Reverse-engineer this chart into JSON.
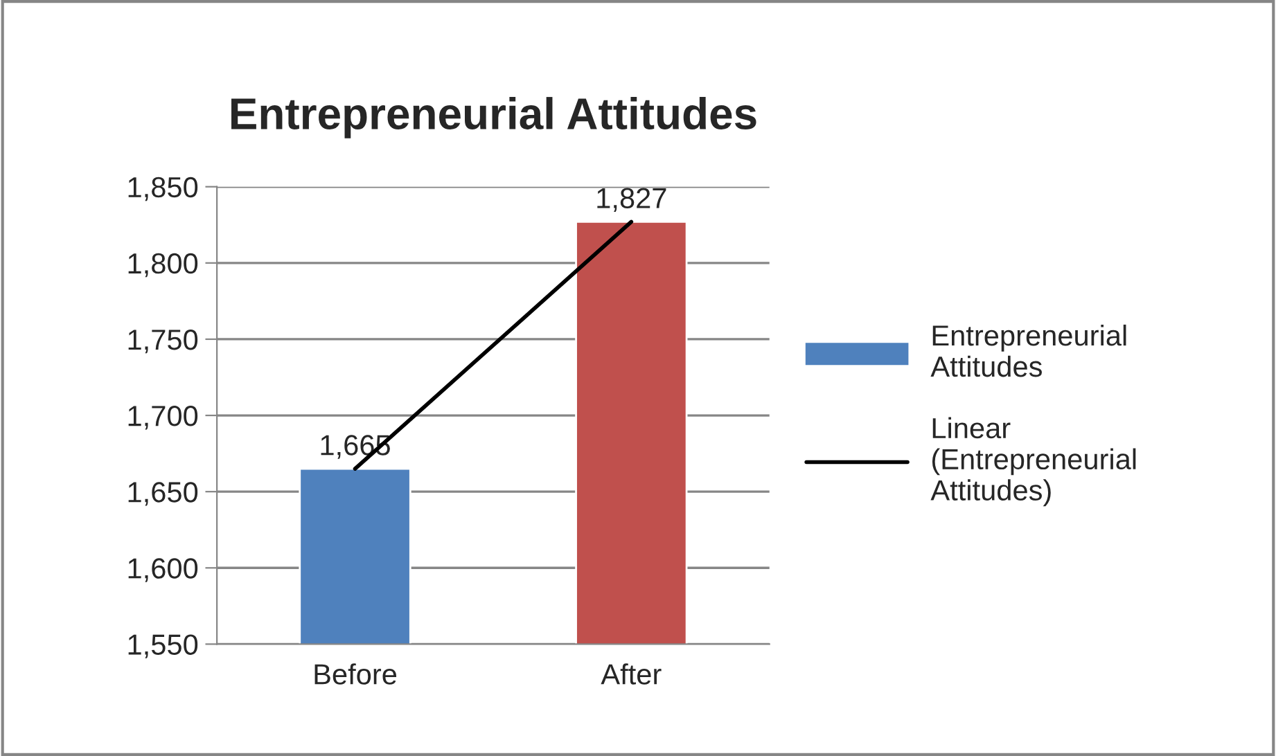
{
  "chart_data": {
    "type": "bar",
    "title": "Entrepreneurial Attitudes",
    "categories": [
      "Before",
      "After"
    ],
    "series": [
      {
        "name": "Entrepreneurial Attitudes",
        "colors": [
          "#4f81bd",
          "#c0504d"
        ],
        "values": [
          1665,
          1827
        ],
        "value_labels": [
          "1,665",
          "1,827"
        ]
      },
      {
        "name": "Linear (Entrepreneurial Attitudes)",
        "type": "line",
        "color": "#000000",
        "values": [
          1665,
          1827
        ]
      }
    ],
    "ylim": [
      1550,
      1850
    ],
    "yticks": [
      {
        "value": 1550,
        "label": "1,550"
      },
      {
        "value": 1600,
        "label": "1,600"
      },
      {
        "value": 1650,
        "label": "1,650"
      },
      {
        "value": 1700,
        "label": "1,700"
      },
      {
        "value": 1750,
        "label": "1,750"
      },
      {
        "value": 1800,
        "label": "1,800"
      },
      {
        "value": 1850,
        "label": "1,850"
      }
    ],
    "grid": "y",
    "legend": "right"
  }
}
